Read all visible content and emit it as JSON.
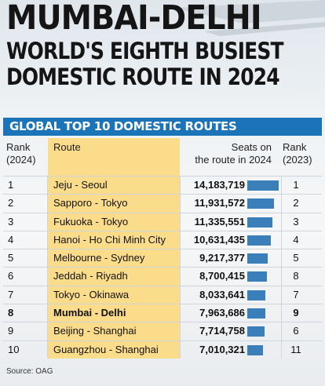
{
  "headline": {
    "line1": "MUMBAI-DELHI",
    "line2": "WORLD'S EIGHTH BUSIEST",
    "line3": "DOMESTIC ROUTE IN 2024"
  },
  "banner": "GLOBAL TOP 10 DOMESTIC ROUTES",
  "columns": {
    "rank": "Rank (2024)",
    "route": "Route",
    "seats": "Seats on the route in 2024",
    "rank23": "Rank (2023)"
  },
  "colors": {
    "banner": "#1b73b8",
    "route_column": "#fbdc8a",
    "bar": "#3a7fba"
  },
  "chart_data": {
    "type": "table",
    "title": "GLOBAL TOP 10 DOMESTIC ROUTES",
    "rows": [
      {
        "rank": "1",
        "route": "Jeju - Seoul",
        "seats": "14,183,719",
        "value": 14183719,
        "rank2023": "1"
      },
      {
        "rank": "2",
        "route": "Sapporo - Tokyo",
        "seats": "11,931,572",
        "value": 11931572,
        "rank2023": "2"
      },
      {
        "rank": "3",
        "route": "Fukuoka - Tokyo",
        "seats": "11,335,551",
        "value": 11335551,
        "rank2023": "3"
      },
      {
        "rank": "4",
        "route": "Hanoi - Ho Chi Minh City",
        "seats": "10,631,435",
        "value": 10631435,
        "rank2023": "4"
      },
      {
        "rank": "5",
        "route": "Melbourne - Sydney",
        "seats": "9,217,377",
        "value": 9217377,
        "rank2023": "5"
      },
      {
        "rank": "6",
        "route": "Jeddah - Riyadh",
        "seats": "8,700,415",
        "value": 8700415,
        "rank2023": "8"
      },
      {
        "rank": "7",
        "route": "Tokyo - Okinawa",
        "seats": "8,033,641",
        "value": 8033641,
        "rank2023": "7"
      },
      {
        "rank": "8",
        "route": "Mumbai - Delhi",
        "seats": "7,963,686",
        "value": 7963686,
        "rank2023": "9",
        "highlight": true
      },
      {
        "rank": "9",
        "route": "Beijing - Shanghai",
        "seats": "7,714,758",
        "value": 7714758,
        "rank2023": "6"
      },
      {
        "rank": "10",
        "route": "Guangzhou - Shanghai",
        "seats": "7,010,321",
        "value": 7010321,
        "rank2023": "11"
      }
    ],
    "max_value": 14183719
  },
  "source": "Source: OAG"
}
